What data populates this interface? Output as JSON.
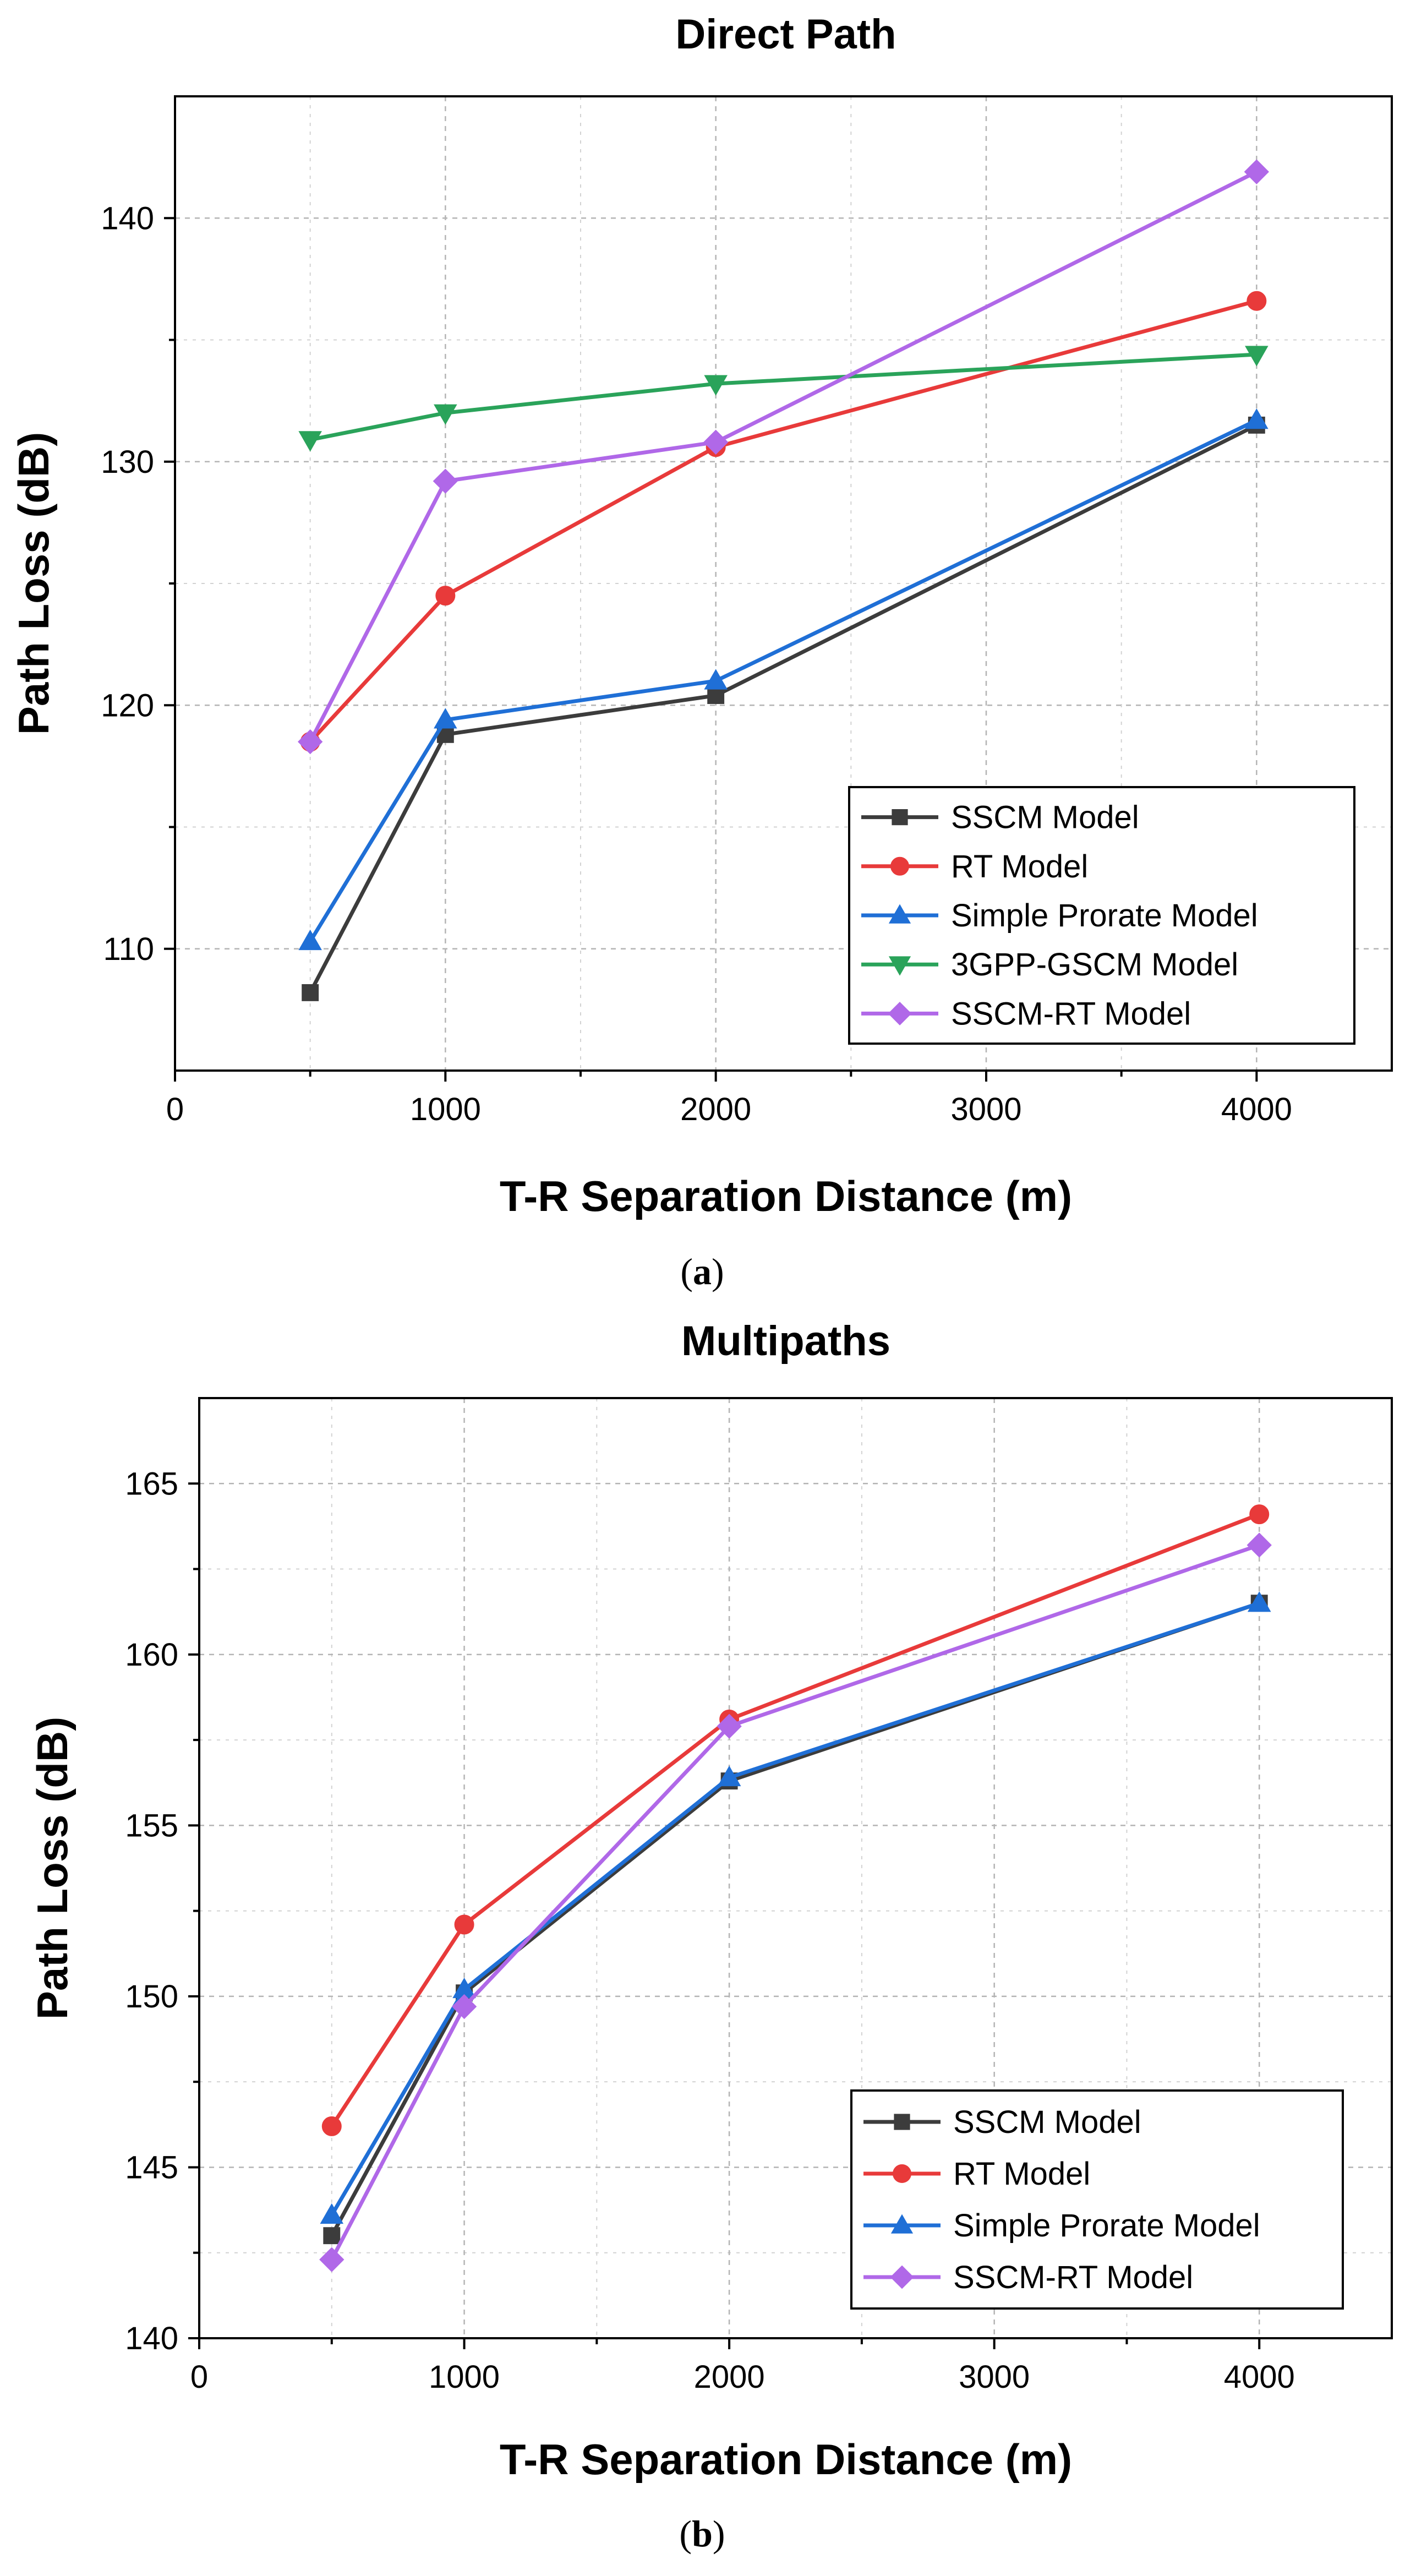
{
  "chart_data": [
    {
      "type": "line",
      "panel_id": "a",
      "title": "Direct Path",
      "xlabel": "T-R Separation Distance (m)",
      "ylabel": "Path Loss (dB)",
      "caption_letter": "a",
      "xlim": [
        0,
        4500
      ],
      "ylim": [
        105,
        145
      ],
      "xticks": [
        0,
        1000,
        2000,
        3000,
        4000
      ],
      "xtick_labels": [
        "0",
        "1000",
        "2000",
        "3000",
        "4000"
      ],
      "yticks": [
        110,
        120,
        130,
        140
      ],
      "ytick_labels": [
        "110",
        "120",
        "130",
        "140"
      ],
      "x_minor_ticks": [
        500,
        1500,
        2500,
        3500
      ],
      "y_minor_ticks": [
        115,
        125,
        135
      ],
      "grid": true,
      "legend_position": "bottom-right",
      "x": [
        500,
        1000,
        2000,
        4000
      ],
      "series": [
        {
          "name": "SSCM Model",
          "marker": "square",
          "color": "#3c3c3c",
          "values": [
            108.2,
            118.8,
            120.4,
            131.5
          ]
        },
        {
          "name": "RT Model",
          "marker": "circle",
          "color": "#e83a3a",
          "values": [
            118.5,
            124.5,
            130.6,
            136.6
          ]
        },
        {
          "name": "Simple Prorate Model",
          "marker": "triangle-up",
          "color": "#1f6fd6",
          "values": [
            110.3,
            119.4,
            121.0,
            131.7
          ]
        },
        {
          "name": "3GPP-GSCM Model",
          "marker": "triangle-down",
          "color": "#2aa35a",
          "values": [
            130.9,
            132.0,
            133.2,
            134.4
          ]
        },
        {
          "name": "SSCM-RT Model",
          "marker": "diamond",
          "color": "#b068e8",
          "values": [
            118.5,
            129.2,
            130.8,
            141.9
          ]
        }
      ]
    },
    {
      "type": "line",
      "panel_id": "b",
      "title": "Multipaths",
      "xlabel": "T-R Separation Distance (m)",
      "ylabel": "Path Loss (dB)",
      "caption_letter": "b",
      "xlim": [
        0,
        4500
      ],
      "ylim": [
        140,
        167.5
      ],
      "xticks": [
        0,
        1000,
        2000,
        3000,
        4000
      ],
      "xtick_labels": [
        "0",
        "1000",
        "2000",
        "3000",
        "4000"
      ],
      "yticks": [
        140,
        145,
        150,
        155,
        160,
        165
      ],
      "ytick_labels": [
        "140",
        "145",
        "150",
        "155",
        "160",
        "165"
      ],
      "x_minor_ticks": [
        500,
        1500,
        2500,
        3500
      ],
      "y_minor_ticks": [
        142.5,
        147.5,
        152.5,
        157.5,
        162.5
      ],
      "grid": true,
      "legend_position": "bottom-right",
      "x": [
        500,
        1000,
        2000,
        4000
      ],
      "series": [
        {
          "name": "SSCM Model",
          "marker": "square",
          "color": "#3c3c3c",
          "values": [
            143.0,
            150.1,
            156.3,
            161.5
          ]
        },
        {
          "name": "RT Model",
          "marker": "circle",
          "color": "#e83a3a",
          "values": [
            146.2,
            152.1,
            158.1,
            164.1
          ]
        },
        {
          "name": "Simple Prorate Model",
          "marker": "triangle-up",
          "color": "#1f6fd6",
          "values": [
            143.6,
            150.2,
            156.4,
            161.5
          ]
        },
        {
          "name": "SSCM-RT Model",
          "marker": "diamond",
          "color": "#b068e8",
          "values": [
            142.3,
            149.7,
            157.9,
            163.2
          ]
        }
      ]
    }
  ]
}
